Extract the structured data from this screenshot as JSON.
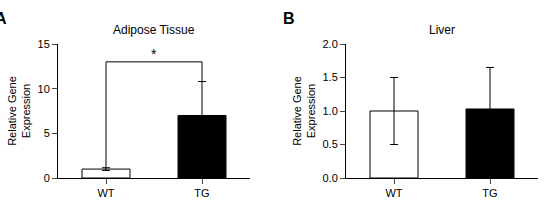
{
  "chart_data": [
    {
      "type": "bar",
      "title": "Adipose Tissue",
      "label": "A",
      "categories": [
        "WT",
        "TG"
      ],
      "values": [
        1.0,
        7.0
      ],
      "errors": [
        0.15,
        3.8
      ],
      "colors": [
        "white",
        "black"
      ],
      "ylim": [
        0,
        15
      ],
      "yticks": [
        0,
        5,
        10,
        15
      ],
      "ylabel": "Relative Gene\nExpression",
      "grid": false,
      "annotations": [
        {
          "text": "*",
          "x": [
            "WT",
            "TG"
          ],
          "y": 13.0,
          "y_start": [
            1.15,
            10.8
          ]
        }
      ]
    },
    {
      "type": "bar",
      "title": "Liver",
      "label": "B",
      "categories": [
        "WT",
        "TG"
      ],
      "values": [
        1.0,
        1.03
      ],
      "errors": [
        0.5,
        0.62
      ],
      "colors": [
        "white",
        "black"
      ],
      "ylim": [
        0,
        2.0
      ],
      "yticks": [
        {
          "value": 0,
          "label": "0.0"
        },
        0.5,
        {
          "value": 1,
          "label": "1.0"
        },
        1.5,
        {
          "value": 2,
          "label": "2.0"
        }
      ],
      "ylabel": "Relative Gene\nExpression",
      "grid": false
    }
  ]
}
